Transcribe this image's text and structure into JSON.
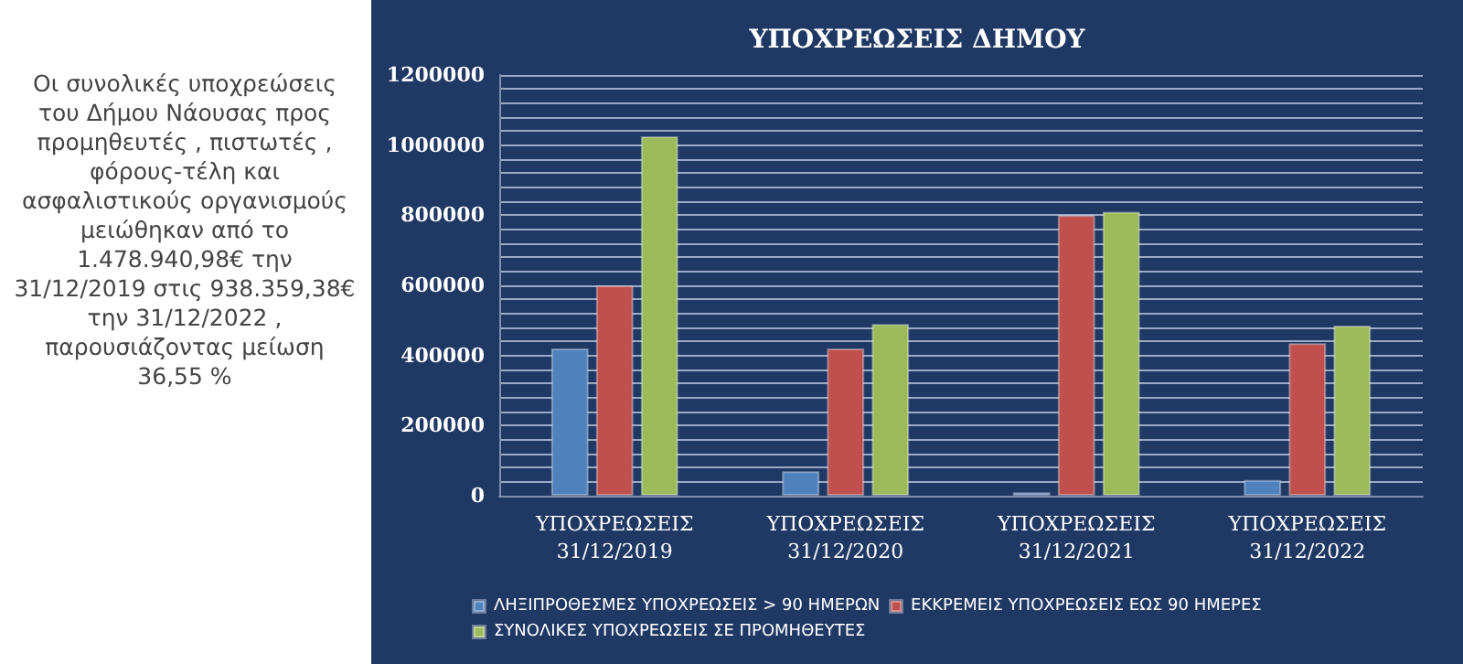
{
  "chart_data": {
    "type": "bar",
    "title": "ΥΠΟΧΡΕΩΣΕΙΣ ΔΗΜΟΥ",
    "categories": [
      "ΥΠΟΧΡΕΩΣΕΙΣ\n31/12/2019",
      "ΥΠΟΧΡΕΩΣΕΙΣ\n31/12/2020",
      "ΥΠΟΧΡΕΩΣΕΙΣ\n31/12/2021",
      "ΥΠΟΧΡΕΩΣΕΙΣ\n31/12/2022"
    ],
    "series": [
      {
        "name": "ΛΗΞΙΠΡΟΘΕΣΜΕΣ ΥΠΟΧΡΕΩΣΕΙΣ > 90 ΗΜΕΡΩΝ",
        "color": "#4f81bd",
        "values": [
          420000,
          70000,
          10000,
          45000
        ]
      },
      {
        "name": "ΕΚΚΡΕΜΕΙΣ ΥΠΟΧΡΕΩΣΕΙΣ ΕΩΣ 90 ΗΜΕΡΕΣ",
        "color": "#c0504d",
        "values": [
          600000,
          420000,
          800000,
          435000
        ]
      },
      {
        "name": "ΣΥΝΟΛΙΚΕΣ ΥΠΟΧΡΕΩΣΕΙΣ ΣΕ ΠΡΟΜΗΘΕΥΤΕΣ",
        "color": "#9bbb59",
        "values": [
          1025000,
          490000,
          810000,
          485000
        ]
      }
    ],
    "ylim": [
      0,
      1200000
    ],
    "yticks": [
      0,
      {
        "value": 40000,
        "label": null
      },
      {
        "value": 80000,
        "label": null
      },
      {
        "value": 120000,
        "label": null
      },
      {
        "value": 160000,
        "label": null
      },
      200000,
      {
        "value": 240000,
        "label": null
      },
      {
        "value": 280000,
        "label": null
      },
      {
        "value": 320000,
        "label": null
      },
      {
        "value": 360000,
        "label": null
      },
      400000,
      {
        "value": 440000,
        "label": null
      },
      {
        "value": 480000,
        "label": null
      },
      {
        "value": 520000,
        "label": null
      },
      {
        "value": 560000,
        "label": null
      },
      600000,
      {
        "value": 640000,
        "label": null
      },
      {
        "value": 680000,
        "label": null
      },
      {
        "value": 720000,
        "label": null
      },
      {
        "value": 760000,
        "label": null
      },
      800000,
      {
        "value": 840000,
        "label": null
      },
      {
        "value": 880000,
        "label": null
      },
      {
        "value": 920000,
        "label": null
      },
      {
        "value": 960000,
        "label": null
      },
      1000000,
      {
        "value": 1040000,
        "label": null
      },
      {
        "value": 1080000,
        "label": null
      },
      {
        "value": 1120000,
        "label": null
      },
      {
        "value": 1160000,
        "label": null
      },
      1200000
    ],
    "grid": "y",
    "legend": "bottom",
    "annotations": [
      "Οι συνολικές υποχρεώσεις του Δήμου Νάουσας προς προμηθευτές , πιστωτές , φόρους-τέλη και ασφαλιστικούς οργανισμούς μειώθηκαν από το 1.478.940,98€ την 31/12/2019 στις 938.359,38€ την 31/12/2022 , παρουσιάζοντας μείωση 36,55 %"
    ]
  }
}
